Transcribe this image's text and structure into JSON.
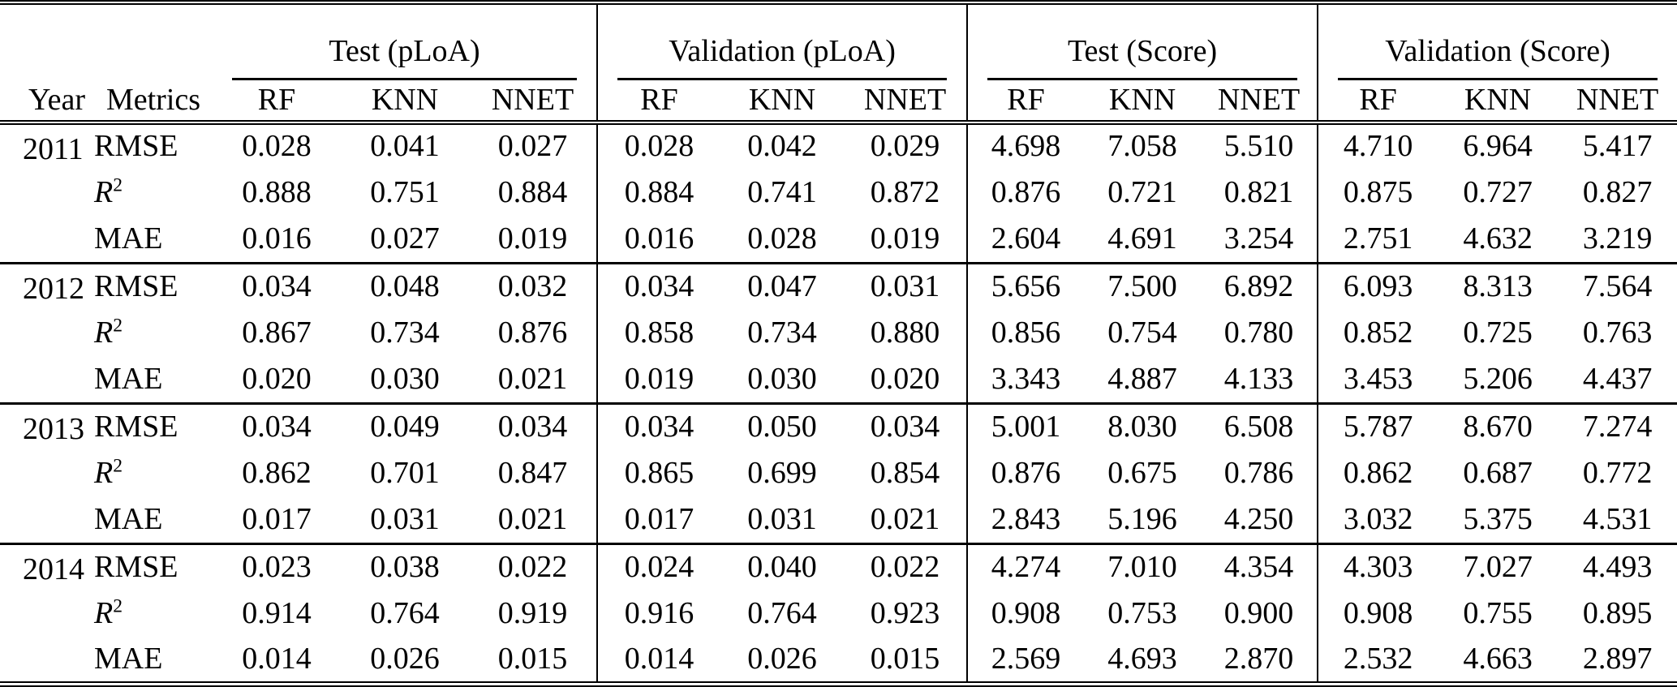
{
  "table": {
    "headers": {
      "year": "Year",
      "metrics": "Metrics",
      "groups": [
        "Test (pLoA)",
        "Validation (pLoA)",
        "Test (Score)",
        "Validation (Score)"
      ],
      "models": [
        "RF",
        "KNN",
        "NNET"
      ]
    },
    "blocks": [
      {
        "year": "2011",
        "rows": [
          {
            "metric": "RMSE",
            "values": [
              "0.028",
              "0.041",
              "0.027",
              "0.028",
              "0.042",
              "0.029",
              "4.698",
              "7.058",
              "5.510",
              "4.710",
              "6.964",
              "5.417"
            ]
          },
          {
            "metric": "R²",
            "values": [
              "0.888",
              "0.751",
              "0.884",
              "0.884",
              "0.741",
              "0.872",
              "0.876",
              "0.721",
              "0.821",
              "0.875",
              "0.727",
              "0.827"
            ]
          },
          {
            "metric": "MAE",
            "values": [
              "0.016",
              "0.027",
              "0.019",
              "0.016",
              "0.028",
              "0.019",
              "2.604",
              "4.691",
              "3.254",
              "2.751",
              "4.632",
              "3.219"
            ]
          }
        ]
      },
      {
        "year": "2012",
        "rows": [
          {
            "metric": "RMSE",
            "values": [
              "0.034",
              "0.048",
              "0.032",
              "0.034",
              "0.047",
              "0.031",
              "5.656",
              "7.500",
              "6.892",
              "6.093",
              "8.313",
              "7.564"
            ]
          },
          {
            "metric": "R²",
            "values": [
              "0.867",
              "0.734",
              "0.876",
              "0.858",
              "0.734",
              "0.880",
              "0.856",
              "0.754",
              "0.780",
              "0.852",
              "0.725",
              "0.763"
            ]
          },
          {
            "metric": "MAE",
            "values": [
              "0.020",
              "0.030",
              "0.021",
              "0.019",
              "0.030",
              "0.020",
              "3.343",
              "4.887",
              "4.133",
              "3.453",
              "5.206",
              "4.437"
            ]
          }
        ]
      },
      {
        "year": "2013",
        "rows": [
          {
            "metric": "RMSE",
            "values": [
              "0.034",
              "0.049",
              "0.034",
              "0.034",
              "0.050",
              "0.034",
              "5.001",
              "8.030",
              "6.508",
              "5.787",
              "8.670",
              "7.274"
            ]
          },
          {
            "metric": "R²",
            "values": [
              "0.862",
              "0.701",
              "0.847",
              "0.865",
              "0.699",
              "0.854",
              "0.876",
              "0.675",
              "0.786",
              "0.862",
              "0.687",
              "0.772"
            ]
          },
          {
            "metric": "MAE",
            "values": [
              "0.017",
              "0.031",
              "0.021",
              "0.017",
              "0.031",
              "0.021",
              "2.843",
              "5.196",
              "4.250",
              "3.032",
              "5.375",
              "4.531"
            ]
          }
        ]
      },
      {
        "year": "2014",
        "rows": [
          {
            "metric": "RMSE",
            "values": [
              "0.023",
              "0.038",
              "0.022",
              "0.024",
              "0.040",
              "0.022",
              "4.274",
              "7.010",
              "4.354",
              "4.303",
              "7.027",
              "4.493"
            ]
          },
          {
            "metric": "R²",
            "values": [
              "0.914",
              "0.764",
              "0.919",
              "0.916",
              "0.764",
              "0.923",
              "0.908",
              "0.753",
              "0.900",
              "0.908",
              "0.755",
              "0.895"
            ]
          },
          {
            "metric": "MAE",
            "values": [
              "0.014",
              "0.026",
              "0.015",
              "0.014",
              "0.026",
              "0.015",
              "2.569",
              "4.693",
              "2.870",
              "2.532",
              "4.663",
              "2.897"
            ]
          }
        ]
      }
    ]
  }
}
